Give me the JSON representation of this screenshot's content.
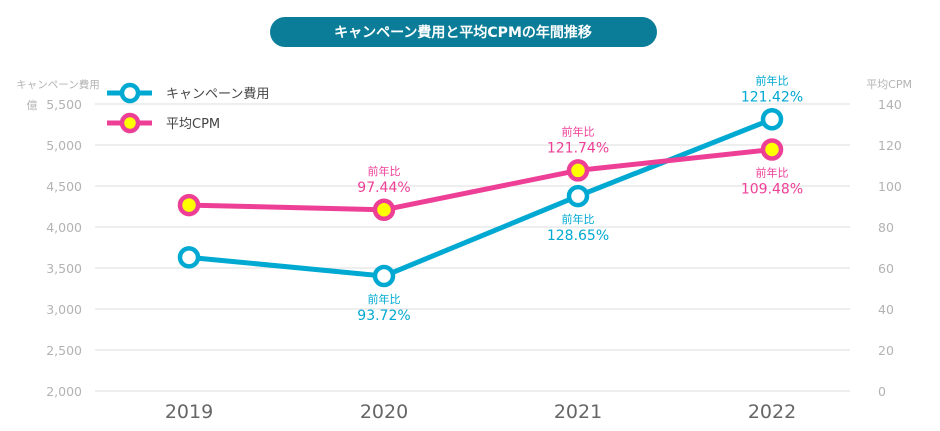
{
  "chart_data": {
    "type": "line",
    "title": "キャンペーン費用と平均CPMの年間推移",
    "categories": [
      "2019",
      "2020",
      "2021",
      "2022"
    ],
    "left_axis": {
      "title": "キャンペーン費用",
      "unit": "億",
      "min": 2000,
      "max": 5500,
      "step": 500,
      "ticks": [
        "2,000",
        "2,500",
        "3,000",
        "3,500",
        "4,000",
        "4,500",
        "5,000",
        "5,500"
      ]
    },
    "right_axis": {
      "title": "平均CPM",
      "min": 0,
      "max": 140,
      "step": 20,
      "ticks": [
        "0",
        "20",
        "40",
        "60",
        "80",
        "100",
        "120",
        "140"
      ]
    },
    "grid": true,
    "legend_position": "top-left",
    "series": [
      {
        "name": "キャンペーン費用",
        "axis": "left",
        "color": "#00a9d1",
        "marker_fill": "#ffffff",
        "values": [
          3630,
          3402,
          4377,
          5314
        ],
        "annotations": [
          null,
          {
            "label": "前年比",
            "value": "93.72%",
            "pos": "below"
          },
          {
            "label": "前年比",
            "value": "128.65%",
            "pos": "below"
          },
          {
            "label": "前年比",
            "value": "121.42%",
            "pos": "above"
          }
        ]
      },
      {
        "name": "平均CPM",
        "axis": "right",
        "color": "#ee3f97",
        "marker_fill": "#ffff00",
        "values": [
          90.7,
          88.4,
          107.6,
          117.8
        ],
        "annotations": [
          null,
          {
            "label": "前年比",
            "value": "97.44%",
            "pos": "above"
          },
          {
            "label": "前年比",
            "value": "121.74%",
            "pos": "above"
          },
          {
            "label": "前年比",
            "value": "109.48%",
            "pos": "below"
          }
        ]
      }
    ],
    "title_bg": "#0b7d98"
  }
}
